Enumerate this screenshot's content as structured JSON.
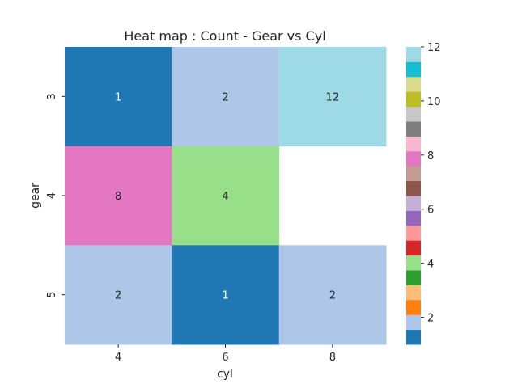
{
  "chart_data": {
    "type": "heatmap",
    "title": "Heat map : Count - Gear vs Cyl",
    "xlabel": "cyl",
    "ylabel": "gear",
    "x_categories": [
      "4",
      "6",
      "8"
    ],
    "y_categories": [
      "3",
      "4",
      "5"
    ],
    "values": [
      [
        1,
        2,
        12
      ],
      [
        8,
        4,
        null
      ],
      [
        2,
        1,
        2
      ]
    ],
    "annotations": [
      [
        "1",
        "2",
        "12"
      ],
      [
        "8",
        "4",
        ""
      ],
      [
        "2",
        "1",
        "2"
      ]
    ],
    "colormap": "tab20",
    "colorbar": {
      "vmin": 1,
      "vmax": 12,
      "ticks": [
        "2",
        "4",
        "6",
        "8",
        "10",
        "12"
      ],
      "colors": [
        "#1f77b4",
        "#aec7e8",
        "#ff7f0e",
        "#ffbb78",
        "#2ca02c",
        "#98df8a",
        "#d62728",
        "#ff9896",
        "#9467bd",
        "#c5b0d5",
        "#8c564b",
        "#c49c94",
        "#e377c2",
        "#f7b6d2",
        "#7f7f7f",
        "#c7c7c7",
        "#bcbd22",
        "#dbdb8d",
        "#17becf",
        "#9edae5"
      ]
    },
    "grid": false
  }
}
